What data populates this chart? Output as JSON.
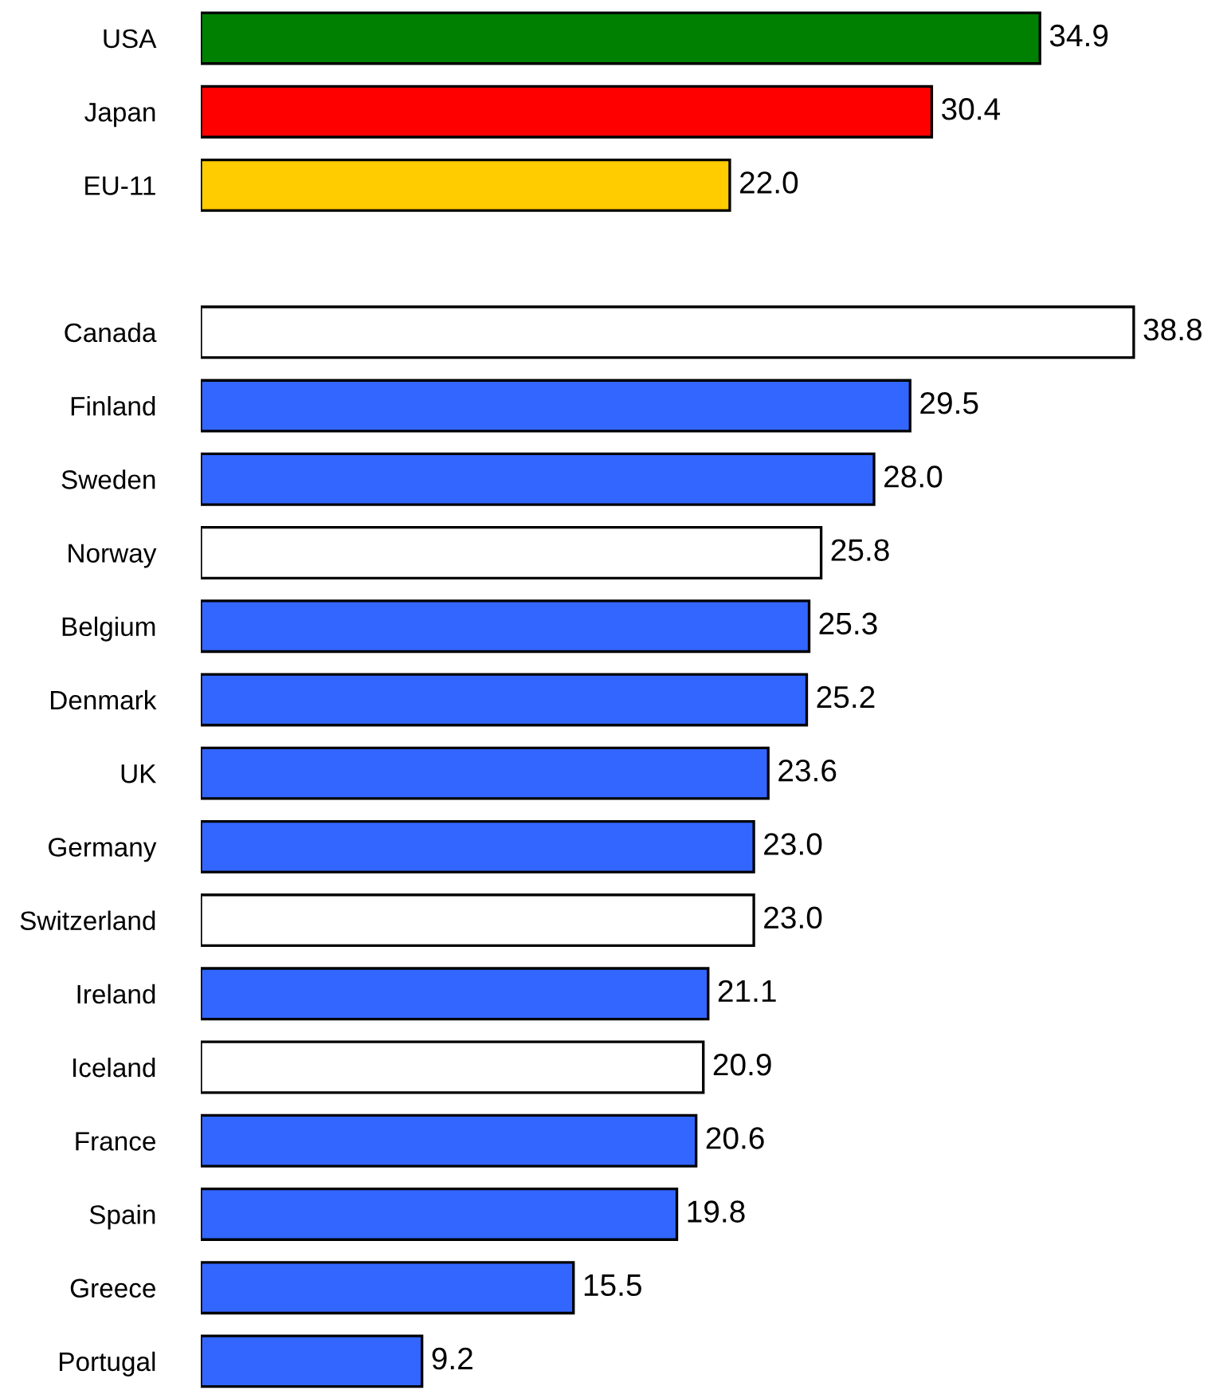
{
  "chart_data": {
    "type": "bar",
    "orientation": "horizontal",
    "categories": [
      "USA",
      "Japan",
      "EU-11",
      null,
      "Canada",
      "Finland",
      "Sweden",
      "Norway",
      "Belgium",
      "Denmark",
      "UK",
      "Germany",
      "Switzerland",
      "Ireland",
      "Iceland",
      "France",
      "Spain",
      "Greece",
      "Portugal"
    ],
    "values": [
      34.9,
      30.4,
      22.0,
      null,
      38.8,
      29.5,
      28.0,
      25.8,
      25.3,
      25.2,
      23.6,
      23.0,
      23.0,
      21.1,
      20.9,
      20.6,
      19.8,
      15.5,
      9.2
    ],
    "value_labels": [
      "34.9",
      "30.4",
      "22.0",
      null,
      "38.8",
      "29.5",
      "28.0",
      "25.8",
      "25.3",
      "25.2",
      "23.6",
      "23.0",
      "23.0",
      "21.1",
      "20.9",
      "20.6",
      "19.8",
      "15.5",
      "9.2"
    ],
    "colors": [
      "#008000",
      "#ff0000",
      "#ffcc00",
      null,
      "#ffffff",
      "#3366ff",
      "#3366ff",
      "#ffffff",
      "#3366ff",
      "#3366ff",
      "#3366ff",
      "#3366ff",
      "#ffffff",
      "#3366ff",
      "#ffffff",
      "#3366ff",
      "#3366ff",
      "#3366ff",
      "#3366ff"
    ],
    "grid": false,
    "legend": false
  }
}
